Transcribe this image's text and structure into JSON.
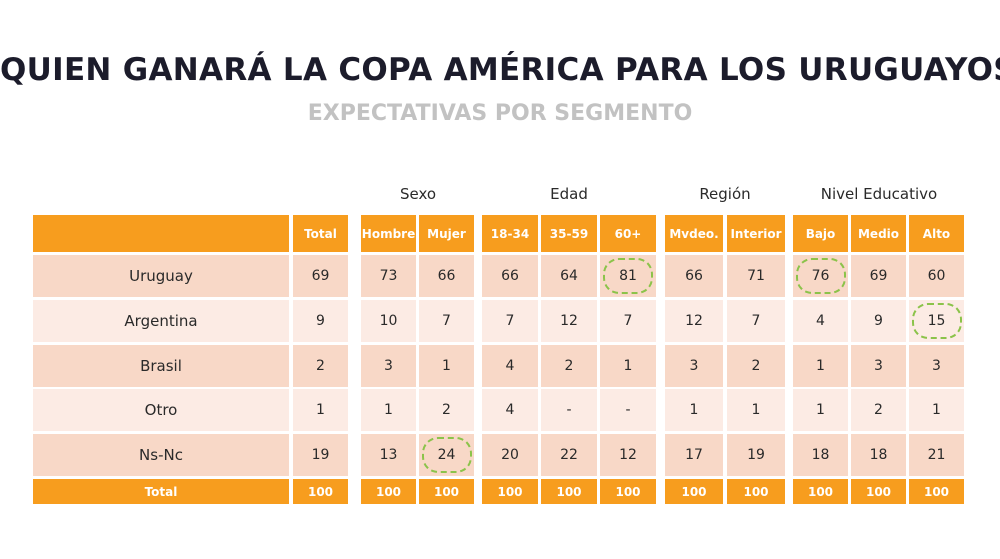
{
  "title": "QUIEN GANARÁ LA COPA AMÉRICA PARA LOS URUGUAYOS",
  "subtitle": "EXPECTATIVAS POR SEGMENTO",
  "groups": {
    "sexo": "Sexo",
    "edad": "Edad",
    "region": "Región",
    "nivel": "Nivel Educativo"
  },
  "columns": [
    "Total",
    "Hombre",
    "Mujer",
    "18-34",
    "35-59",
    "60+",
    "Mvdeo.",
    "Interior",
    "Bajo",
    "Medio",
    "Alto"
  ],
  "rows": [
    {
      "label": "Uruguay",
      "values": [
        "69",
        "73",
        "66",
        "66",
        "64",
        "81",
        "66",
        "71",
        "76",
        "69",
        "60"
      ]
    },
    {
      "label": "Argentina",
      "values": [
        "9",
        "10",
        "7",
        "7",
        "12",
        "7",
        "12",
        "7",
        "4",
        "9",
        "15"
      ]
    },
    {
      "label": "Brasil",
      "values": [
        "2",
        "3",
        "1",
        "4",
        "2",
        "1",
        "3",
        "2",
        "1",
        "3",
        "3"
      ]
    },
    {
      "label": "Otro",
      "values": [
        "1",
        "1",
        "2",
        "4",
        "-",
        "-",
        "1",
        "1",
        "1",
        "2",
        "1"
      ]
    },
    {
      "label": "Ns-Nc",
      "values": [
        "19",
        "13",
        "24",
        "20",
        "22",
        "12",
        "17",
        "19",
        "18",
        "18",
        "21"
      ]
    }
  ],
  "footer": {
    "label": "Total",
    "values": [
      "100",
      "100",
      "100",
      "100",
      "100",
      "100",
      "100",
      "100",
      "100",
      "100",
      "100"
    ]
  },
  "highlights": [
    {
      "row": 0,
      "col": 5
    },
    {
      "row": 0,
      "col": 8
    },
    {
      "row": 1,
      "col": 10
    },
    {
      "row": 4,
      "col": 2
    }
  ],
  "colors": {
    "header": "#f79d1e",
    "row_dark": "#f8d8c7",
    "row_light": "#fcebe4",
    "highlight": "#8bc34a",
    "title": "#1c1c2b",
    "subtitle": "#c2c2c2"
  }
}
